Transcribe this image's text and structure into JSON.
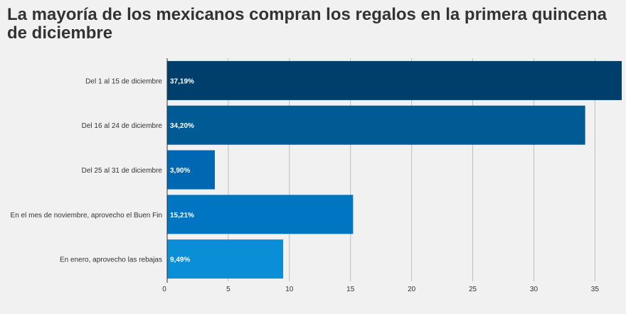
{
  "chart_data": {
    "type": "bar",
    "orientation": "horizontal",
    "title": "La mayoría de los mexicanos compran los regalos en la primera quincena de diciembre",
    "categories": [
      "Del 1 al 15 de diciembre",
      "Del 16 al 24 de diciembre",
      "Del 25 al 31 de diciembre",
      "En el mes de noviembre, aprovecho el Buen Fin",
      "En enero, aprovecho las rebajas"
    ],
    "values": [
      37.19,
      34.2,
      3.9,
      15.21,
      9.49
    ],
    "value_labels": [
      "37,19%",
      "34,20%",
      "3,90%",
      "15,21%",
      "9,49%"
    ],
    "bar_colors": [
      "#003f6b",
      "#005a94",
      "#0068b3",
      "#0075c2",
      "#0a8ed6"
    ],
    "xlim": [
      0,
      37.19
    ],
    "xticks": [
      0,
      5,
      10,
      15,
      20,
      25,
      30,
      35
    ],
    "grid": true,
    "xlabel": "",
    "ylabel": ""
  }
}
